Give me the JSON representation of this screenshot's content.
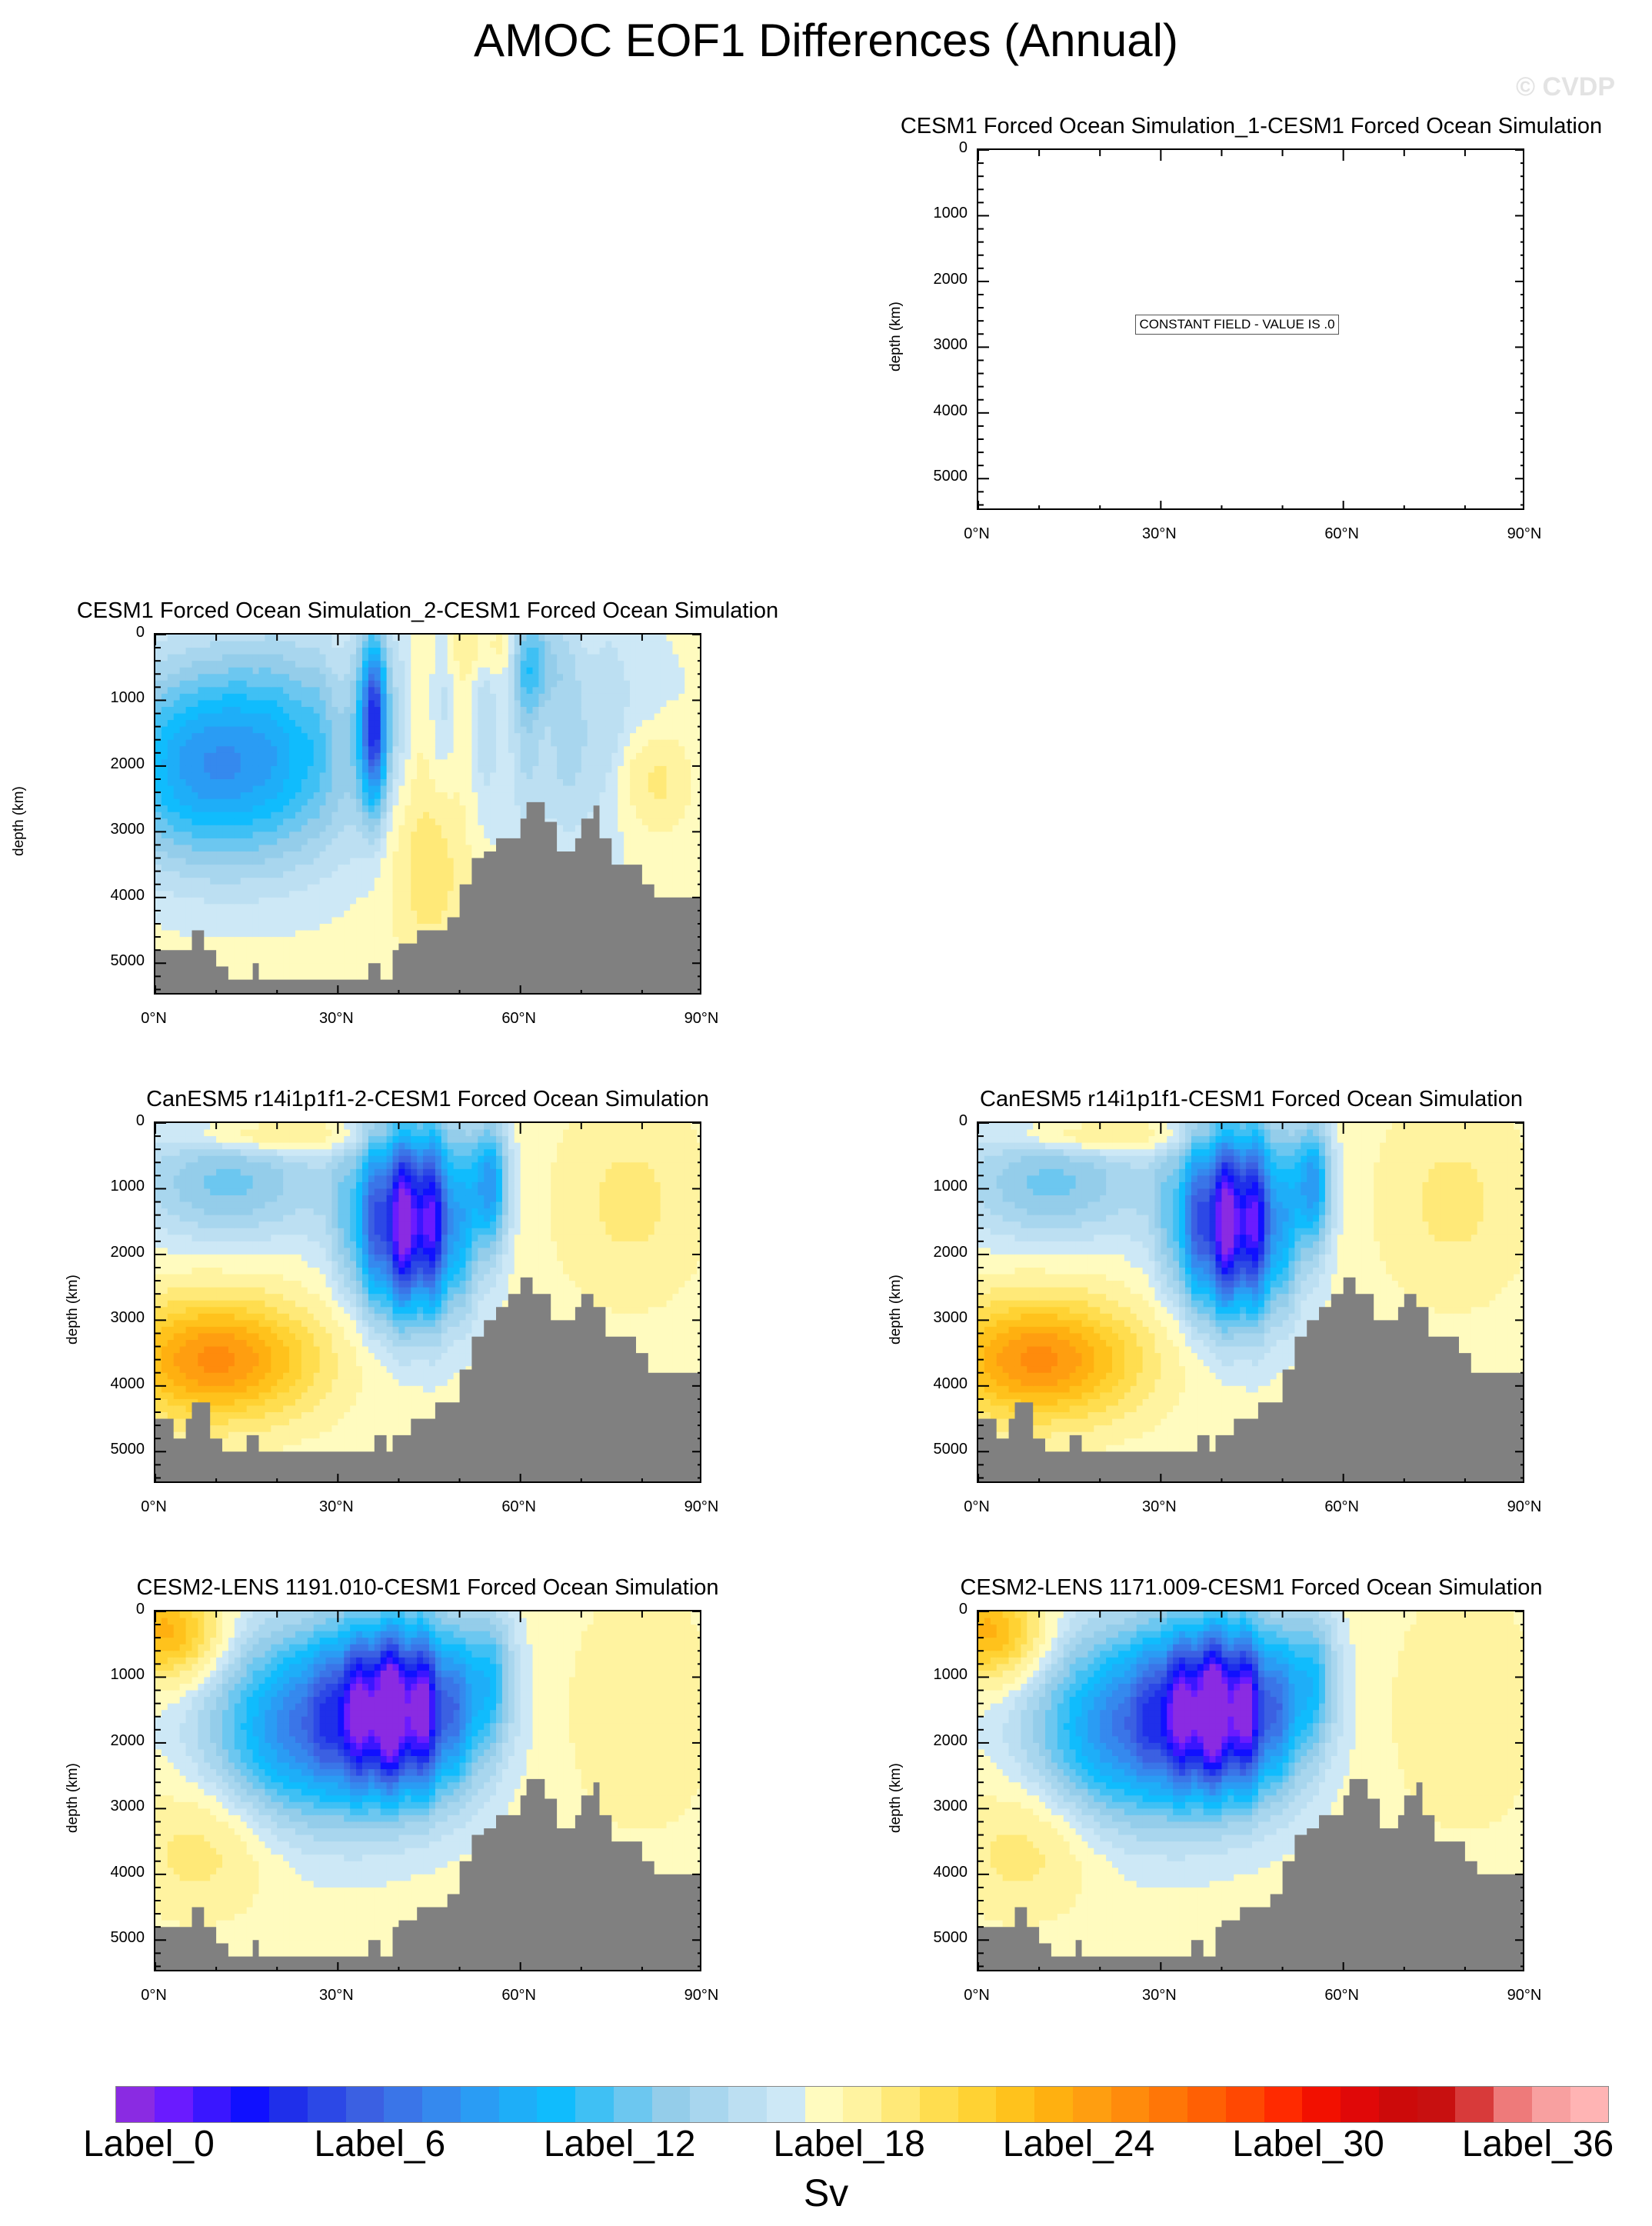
{
  "title": "AMOC EOF1 Differences (Annual)",
  "watermark": "© CVDP",
  "colors": {
    "land": "#808080",
    "palette": [
      "#8a2be2",
      "#6a1bff",
      "#3a16ff",
      "#1010ff",
      "#1f2fea",
      "#2c48e6",
      "#3b60e2",
      "#3a75e8",
      "#3589ee",
      "#2a9cf4",
      "#1eaef8",
      "#10bcfd",
      "#3fc0f4",
      "#6cc7f0",
      "#94cdea",
      "#a8d6ee",
      "#bcdff2",
      "#cde8f6",
      "#fffbbf",
      "#fff3a0",
      "#ffe978",
      "#ffdd4f",
      "#ffd233",
      "#ffc21c",
      "#ffb010",
      "#ff9e10",
      "#ff8b0c",
      "#ff7607",
      "#ff6004",
      "#ff4802",
      "#ff2a00",
      "#f21000",
      "#e00808",
      "#cc0a0a",
      "#c81010",
      "#d83a3a",
      "#ee7a7a",
      "#f8a0a0",
      "#ffb4b4"
    ]
  },
  "colorbar": {
    "labels": [
      "Label_0",
      "Label_6",
      "Label_12",
      "Label_18",
      "Label_24",
      "Label_30",
      "Label_36"
    ],
    "units": "Sv"
  },
  "chart_data": [
    {
      "type": "heatmap",
      "title": "CESM1 Forced Ocean Simulation_1-CESM1 Forced Ocean Simulation",
      "ylabel": "depth (km)",
      "xticks": [
        "0°N",
        "30°N",
        "60°N",
        "90°N"
      ],
      "yticks": [
        "0",
        "1000",
        "2000",
        "3000",
        "4000",
        "5000"
      ],
      "xlim": [
        0,
        90
      ],
      "ylim": [
        5500,
        0
      ],
      "annotation": "CONSTANT FIELD - VALUE IS .0",
      "pattern": "constant",
      "bathymetry": []
    },
    {
      "type": "heatmap",
      "title": "CESM1 Forced Ocean Simulation_2-CESM1 Forced Ocean Simulation",
      "ylabel": "depth (km)",
      "xticks": [
        "0°N",
        "30°N",
        "60°N",
        "90°N"
      ],
      "yticks": [
        "0",
        "1000",
        "2000",
        "3000",
        "4000",
        "5000"
      ],
      "xlim": [
        0,
        90
      ],
      "ylim": [
        5500,
        0
      ],
      "pattern": "fos2",
      "bathymetry": [
        [
          0,
          4800
        ],
        [
          6,
          4800
        ],
        [
          6,
          4500
        ],
        [
          8,
          4500
        ],
        [
          8,
          4800
        ],
        [
          10,
          4800
        ],
        [
          10,
          5050
        ],
        [
          12,
          5050
        ],
        [
          12,
          5250
        ],
        [
          16,
          5250
        ],
        [
          16,
          5000
        ],
        [
          17,
          5000
        ],
        [
          17,
          5250
        ],
        [
          35,
          5250
        ],
        [
          35,
          5000
        ],
        [
          37,
          5000
        ],
        [
          37,
          5250
        ],
        [
          39,
          5250
        ],
        [
          39,
          4800
        ],
        [
          40,
          4800
        ],
        [
          40,
          4700
        ],
        [
          43,
          4700
        ],
        [
          43,
          4500
        ],
        [
          48,
          4500
        ],
        [
          48,
          4300
        ],
        [
          50,
          4300
        ],
        [
          50,
          3800
        ],
        [
          52,
          3800
        ],
        [
          52,
          3400
        ],
        [
          54,
          3400
        ],
        [
          54,
          3300
        ],
        [
          56,
          3300
        ],
        [
          56,
          3100
        ],
        [
          60,
          3100
        ],
        [
          60,
          2800
        ],
        [
          61,
          2800
        ],
        [
          61,
          2550
        ],
        [
          64,
          2550
        ],
        [
          64,
          2850
        ],
        [
          66,
          2850
        ],
        [
          66,
          3300
        ],
        [
          69,
          3300
        ],
        [
          69,
          3100
        ],
        [
          70,
          3100
        ],
        [
          70,
          2800
        ],
        [
          72,
          2800
        ],
        [
          72,
          2600
        ],
        [
          73,
          2600
        ],
        [
          73,
          3100
        ],
        [
          75,
          3100
        ],
        [
          75,
          3500
        ],
        [
          80,
          3500
        ],
        [
          80,
          3800
        ],
        [
          82,
          3800
        ],
        [
          82,
          4000
        ],
        [
          90,
          4000
        ]
      ]
    },
    {
      "type": "heatmap",
      "title": "CanESM5 r14i1p1f1-2-CESM1 Forced Ocean Simulation",
      "ylabel": "depth (km)",
      "xticks": [
        "0°N",
        "30°N",
        "60°N",
        "90°N"
      ],
      "yticks": [
        "0",
        "1000",
        "2000",
        "3000",
        "4000",
        "5000"
      ],
      "xlim": [
        0,
        90
      ],
      "ylim": [
        5500,
        0
      ],
      "pattern": "can",
      "bathymetry": [
        [
          0,
          4500
        ],
        [
          3,
          4500
        ],
        [
          3,
          4800
        ],
        [
          5,
          4800
        ],
        [
          5,
          4500
        ],
        [
          6,
          4500
        ],
        [
          6,
          4250
        ],
        [
          9,
          4250
        ],
        [
          9,
          4800
        ],
        [
          11,
          4800
        ],
        [
          11,
          5000
        ],
        [
          15,
          5000
        ],
        [
          15,
          4750
        ],
        [
          17,
          4750
        ],
        [
          17,
          5000
        ],
        [
          36,
          5000
        ],
        [
          36,
          4750
        ],
        [
          38,
          4750
        ],
        [
          38,
          5000
        ],
        [
          39,
          5000
        ],
        [
          39,
          4750
        ],
        [
          42,
          4750
        ],
        [
          42,
          4500
        ],
        [
          46,
          4500
        ],
        [
          46,
          4250
        ],
        [
          50,
          4250
        ],
        [
          50,
          3750
        ],
        [
          52,
          3750
        ],
        [
          52,
          3250
        ],
        [
          54,
          3250
        ],
        [
          54,
          3000
        ],
        [
          56,
          3000
        ],
        [
          56,
          2800
        ],
        [
          58,
          2800
        ],
        [
          58,
          2600
        ],
        [
          60,
          2600
        ],
        [
          60,
          2350
        ],
        [
          62,
          2350
        ],
        [
          62,
          2600
        ],
        [
          65,
          2600
        ],
        [
          65,
          3000
        ],
        [
          69,
          3000
        ],
        [
          69,
          2800
        ],
        [
          70,
          2800
        ],
        [
          70,
          2600
        ],
        [
          72,
          2600
        ],
        [
          72,
          2800
        ],
        [
          74,
          2800
        ],
        [
          74,
          3250
        ],
        [
          79,
          3250
        ],
        [
          79,
          3500
        ],
        [
          81,
          3500
        ],
        [
          81,
          3800
        ],
        [
          90,
          3800
        ]
      ]
    },
    {
      "type": "heatmap",
      "title": "CanESM5 r14i1p1f1-CESM1 Forced Ocean Simulation",
      "ylabel": "depth (km)",
      "xticks": [
        "0°N",
        "30°N",
        "60°N",
        "90°N"
      ],
      "yticks": [
        "0",
        "1000",
        "2000",
        "3000",
        "4000",
        "5000"
      ],
      "xlim": [
        0,
        90
      ],
      "ylim": [
        5500,
        0
      ],
      "pattern": "can",
      "bathymetry": [
        [
          0,
          4500
        ],
        [
          3,
          4500
        ],
        [
          3,
          4800
        ],
        [
          5,
          4800
        ],
        [
          5,
          4500
        ],
        [
          6,
          4500
        ],
        [
          6,
          4250
        ],
        [
          9,
          4250
        ],
        [
          9,
          4800
        ],
        [
          11,
          4800
        ],
        [
          11,
          5000
        ],
        [
          15,
          5000
        ],
        [
          15,
          4750
        ],
        [
          17,
          4750
        ],
        [
          17,
          5000
        ],
        [
          36,
          5000
        ],
        [
          36,
          4750
        ],
        [
          38,
          4750
        ],
        [
          38,
          5000
        ],
        [
          39,
          5000
        ],
        [
          39,
          4750
        ],
        [
          42,
          4750
        ],
        [
          42,
          4500
        ],
        [
          46,
          4500
        ],
        [
          46,
          4250
        ],
        [
          50,
          4250
        ],
        [
          50,
          3750
        ],
        [
          52,
          3750
        ],
        [
          52,
          3250
        ],
        [
          54,
          3250
        ],
        [
          54,
          3000
        ],
        [
          56,
          3000
        ],
        [
          56,
          2800
        ],
        [
          58,
          2800
        ],
        [
          58,
          2600
        ],
        [
          60,
          2600
        ],
        [
          60,
          2350
        ],
        [
          62,
          2350
        ],
        [
          62,
          2600
        ],
        [
          65,
          2600
        ],
        [
          65,
          3000
        ],
        [
          69,
          3000
        ],
        [
          69,
          2800
        ],
        [
          70,
          2800
        ],
        [
          70,
          2600
        ],
        [
          72,
          2600
        ],
        [
          72,
          2800
        ],
        [
          74,
          2800
        ],
        [
          74,
          3250
        ],
        [
          79,
          3250
        ],
        [
          79,
          3500
        ],
        [
          81,
          3500
        ],
        [
          81,
          3800
        ],
        [
          90,
          3800
        ]
      ]
    },
    {
      "type": "heatmap",
      "title": "CESM2-LENS 1191.010-CESM1 Forced Ocean Simulation",
      "ylabel": "depth (km)",
      "xticks": [
        "0°N",
        "30°N",
        "60°N",
        "90°N"
      ],
      "yticks": [
        "0",
        "1000",
        "2000",
        "3000",
        "4000",
        "5000"
      ],
      "xlim": [
        0,
        90
      ],
      "ylim": [
        5500,
        0
      ],
      "pattern": "lens",
      "bathymetry": [
        [
          0,
          4800
        ],
        [
          6,
          4800
        ],
        [
          6,
          4500
        ],
        [
          8,
          4500
        ],
        [
          8,
          4800
        ],
        [
          10,
          4800
        ],
        [
          10,
          5050
        ],
        [
          12,
          5050
        ],
        [
          12,
          5250
        ],
        [
          16,
          5250
        ],
        [
          16,
          5000
        ],
        [
          17,
          5000
        ],
        [
          17,
          5250
        ],
        [
          35,
          5250
        ],
        [
          35,
          5000
        ],
        [
          37,
          5000
        ],
        [
          37,
          5250
        ],
        [
          39,
          5250
        ],
        [
          39,
          4800
        ],
        [
          40,
          4800
        ],
        [
          40,
          4700
        ],
        [
          43,
          4700
        ],
        [
          43,
          4500
        ],
        [
          48,
          4500
        ],
        [
          48,
          4300
        ],
        [
          50,
          4300
        ],
        [
          50,
          3800
        ],
        [
          52,
          3800
        ],
        [
          52,
          3400
        ],
        [
          54,
          3400
        ],
        [
          54,
          3300
        ],
        [
          56,
          3300
        ],
        [
          56,
          3100
        ],
        [
          60,
          3100
        ],
        [
          60,
          2800
        ],
        [
          61,
          2800
        ],
        [
          61,
          2550
        ],
        [
          64,
          2550
        ],
        [
          64,
          2850
        ],
        [
          66,
          2850
        ],
        [
          66,
          3300
        ],
        [
          69,
          3300
        ],
        [
          69,
          3100
        ],
        [
          70,
          3100
        ],
        [
          70,
          2800
        ],
        [
          72,
          2800
        ],
        [
          72,
          2600
        ],
        [
          73,
          2600
        ],
        [
          73,
          3100
        ],
        [
          75,
          3100
        ],
        [
          75,
          3500
        ],
        [
          80,
          3500
        ],
        [
          80,
          3800
        ],
        [
          82,
          3800
        ],
        [
          82,
          4000
        ],
        [
          90,
          4000
        ]
      ]
    },
    {
      "type": "heatmap",
      "title": "CESM2-LENS 1171.009-CESM1 Forced Ocean Simulation",
      "ylabel": "depth (km)",
      "xticks": [
        "0°N",
        "30°N",
        "60°N",
        "90°N"
      ],
      "yticks": [
        "0",
        "1000",
        "2000",
        "3000",
        "4000",
        "5000"
      ],
      "xlim": [
        0,
        90
      ],
      "ylim": [
        5500,
        0
      ],
      "pattern": "lens",
      "bathymetry": [
        [
          0,
          4800
        ],
        [
          6,
          4800
        ],
        [
          6,
          4500
        ],
        [
          8,
          4500
        ],
        [
          8,
          4800
        ],
        [
          10,
          4800
        ],
        [
          10,
          5050
        ],
        [
          12,
          5050
        ],
        [
          12,
          5250
        ],
        [
          16,
          5250
        ],
        [
          16,
          5000
        ],
        [
          17,
          5000
        ],
        [
          17,
          5250
        ],
        [
          35,
          5250
        ],
        [
          35,
          5000
        ],
        [
          37,
          5000
        ],
        [
          37,
          5250
        ],
        [
          39,
          5250
        ],
        [
          39,
          4800
        ],
        [
          40,
          4800
        ],
        [
          40,
          4700
        ],
        [
          43,
          4700
        ],
        [
          43,
          4500
        ],
        [
          48,
          4500
        ],
        [
          48,
          4300
        ],
        [
          50,
          4300
        ],
        [
          50,
          3800
        ],
        [
          52,
          3800
        ],
        [
          52,
          3400
        ],
        [
          54,
          3400
        ],
        [
          54,
          3300
        ],
        [
          56,
          3300
        ],
        [
          56,
          3100
        ],
        [
          60,
          3100
        ],
        [
          60,
          2800
        ],
        [
          61,
          2800
        ],
        [
          61,
          2550
        ],
        [
          64,
          2550
        ],
        [
          64,
          2850
        ],
        [
          66,
          2850
        ],
        [
          66,
          3300
        ],
        [
          69,
          3300
        ],
        [
          69,
          3100
        ],
        [
          70,
          3100
        ],
        [
          70,
          2800
        ],
        [
          72,
          2800
        ],
        [
          72,
          2600
        ],
        [
          73,
          2600
        ],
        [
          73,
          3100
        ],
        [
          75,
          3100
        ],
        [
          75,
          3500
        ],
        [
          80,
          3500
        ],
        [
          80,
          3800
        ],
        [
          82,
          3800
        ],
        [
          82,
          4000
        ],
        [
          90,
          4000
        ]
      ]
    }
  ]
}
